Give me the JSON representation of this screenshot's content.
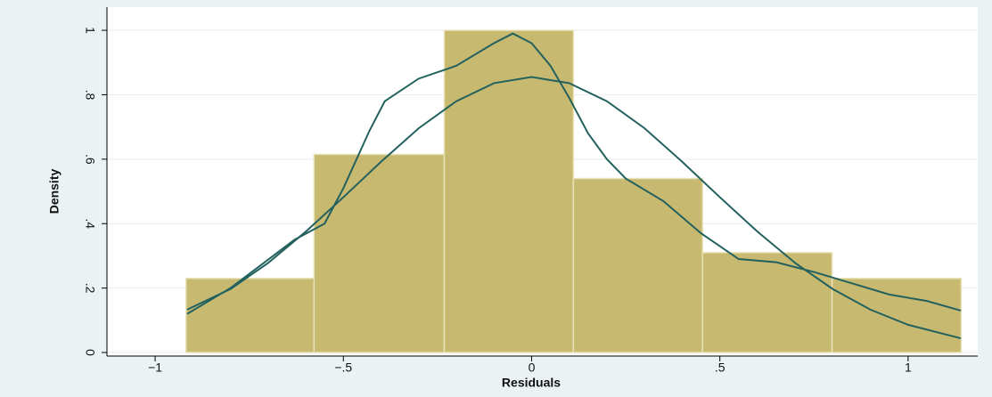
{
  "chart_data": {
    "type": "histogram",
    "x_label": "Residuals",
    "y_label": "Density",
    "bins": [
      -0.918,
      -0.578,
      -0.232,
      0.111,
      0.454,
      0.798,
      1.141
    ],
    "values": [
      0.23,
      0.615,
      1.0,
      0.54,
      0.31,
      0.23
    ],
    "color": "#c8b970",
    "series": [
      {
        "color": "#23615e",
        "x": [
          -0.915,
          -0.8,
          -0.63,
          -0.55,
          -0.5,
          -0.43,
          -0.39,
          -0.3,
          -0.2,
          -0.1,
          -0.05,
          0,
          0.05,
          0.1,
          0.15,
          0.2,
          0.25,
          0.35,
          0.45,
          0.55,
          0.65,
          0.75,
          0.85,
          0.95,
          1.05,
          1.14
        ],
        "values": [
          0.12,
          0.2,
          0.35,
          0.4,
          0.51,
          0.69,
          0.78,
          0.85,
          0.89,
          0.96,
          0.99,
          0.96,
          0.89,
          0.79,
          0.68,
          0.6,
          0.54,
          0.47,
          0.37,
          0.29,
          0.28,
          0.25,
          0.215,
          0.18,
          0.16,
          0.13
        ]
      },
      {
        "color": "#23615e",
        "x": [
          -0.915,
          -0.8,
          -0.7,
          -0.6,
          -0.5,
          -0.4,
          -0.3,
          -0.2,
          -0.1,
          0,
          0.1,
          0.2,
          0.3,
          0.4,
          0.5,
          0.6,
          0.7,
          0.8,
          0.9,
          1.0,
          1.14
        ],
        "values": [
          0.133,
          0.197,
          0.278,
          0.375,
          0.482,
          0.592,
          0.696,
          0.78,
          0.836,
          0.855,
          0.836,
          0.78,
          0.696,
          0.592,
          0.482,
          0.375,
          0.278,
          0.197,
          0.133,
          0.086,
          0.044
        ]
      }
    ],
    "xlim": [
      -1.128,
      1.185
    ],
    "ylim": [
      -0.011,
      1.072
    ],
    "xticks": [
      {
        "value": -1,
        "label": "−1"
      },
      {
        "value": -0.5,
        "label": "−.5"
      },
      0,
      {
        "value": 0.5,
        "label": ".5"
      },
      1
    ],
    "yticks": [
      0,
      {
        "value": 0.2,
        "label": ".2"
      },
      {
        "value": 0.4,
        "label": ".4"
      },
      {
        "value": 0.6,
        "label": ".6"
      },
      {
        "value": 0.8,
        "label": ".8"
      },
      1
    ],
    "grid": true
  }
}
